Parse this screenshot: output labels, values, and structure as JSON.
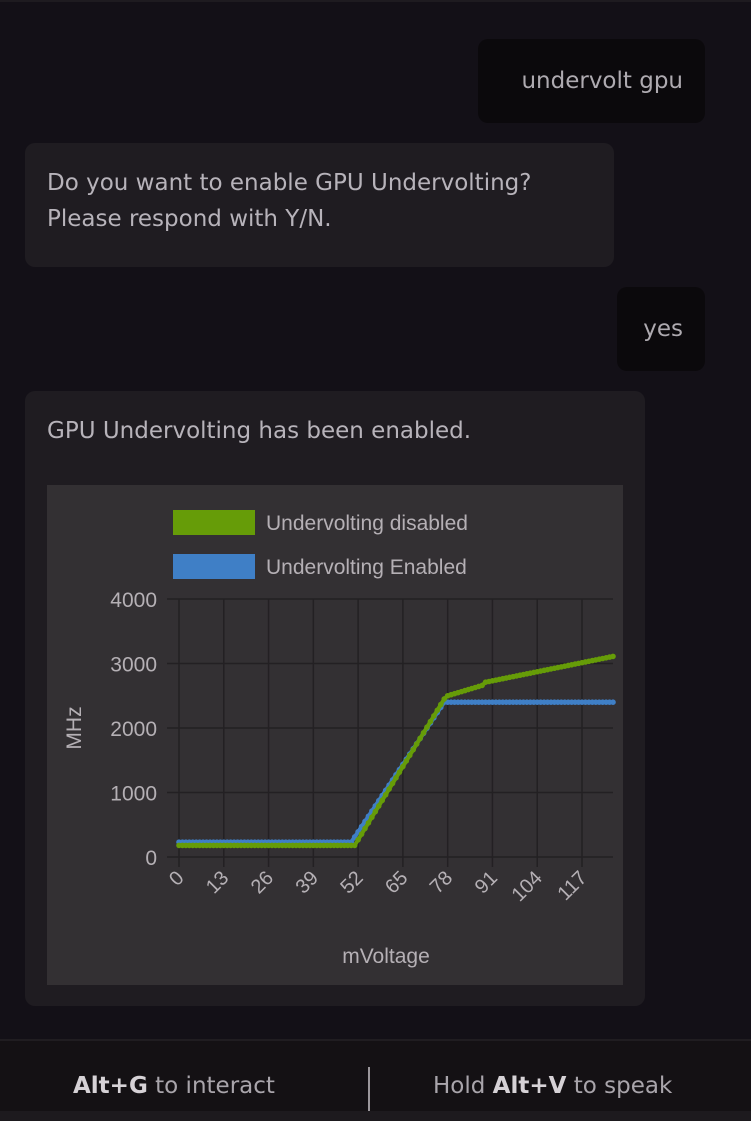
{
  "messages": [
    {
      "role": "user",
      "text": "undervolt gpu"
    },
    {
      "role": "assistant",
      "text": "Do you want to enable GPU Undervolting? Please respond with Y/N.",
      "lines": [
        "Do you want to enable GPU Undervolting?",
        "Please respond with Y/N."
      ]
    },
    {
      "role": "user",
      "text": "yes"
    },
    {
      "role": "assistant",
      "text": "GPU Undervolting has been enabled."
    }
  ],
  "footer": {
    "interact": {
      "key": "Alt+G",
      "text": " to interact"
    },
    "speak": {
      "prefix": "Hold ",
      "key": "Alt+V",
      "text": " to speak"
    }
  },
  "chart_data": {
    "type": "line",
    "xlabel": "mVoltage",
    "ylabel": "MHz",
    "xlim": [
      0,
      126
    ],
    "ylim": [
      0,
      4000
    ],
    "x_ticks": [
      "0",
      "13",
      "26",
      "39",
      "52",
      "65",
      "78",
      "91",
      "104",
      "117"
    ],
    "y_ticks": [
      "0",
      "1000",
      "2000",
      "3000",
      "4000"
    ],
    "grid": true,
    "legend_position": "top",
    "series": [
      {
        "name": "Undervolting disabled",
        "color": "#669c08",
        "breakpoints": [
          [
            0,
            180
          ],
          [
            51,
            180
          ],
          [
            77,
            2450
          ],
          [
            78,
            2500
          ],
          [
            88,
            2660
          ],
          [
            89,
            2710
          ],
          [
            126,
            3110
          ]
        ]
      },
      {
        "name": "Undervolting Enabled",
        "color": "#3f7fc6",
        "breakpoints": [
          [
            0,
            230
          ],
          [
            50,
            230
          ],
          [
            77,
            2400
          ],
          [
            126,
            2400
          ]
        ]
      }
    ]
  }
}
